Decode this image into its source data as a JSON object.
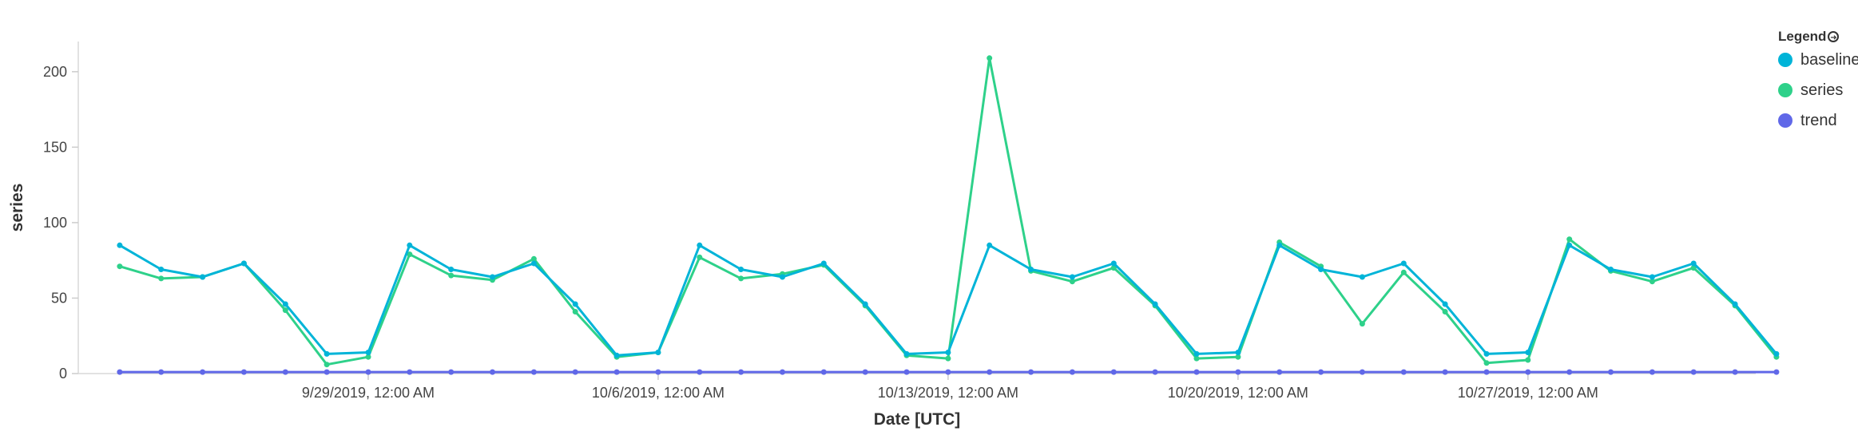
{
  "legend": {
    "title": "Legend",
    "items": [
      {
        "label": "baseline",
        "color": "#00b4d8"
      },
      {
        "label": "series",
        "color": "#2ed18a"
      },
      {
        "label": "trend",
        "color": "#6068e8"
      }
    ]
  },
  "chart_data": {
    "type": "line",
    "xlabel": "Date [UTC]",
    "ylabel": "series",
    "ylim": [
      0,
      220
    ],
    "xlim": [
      "2019-09-22",
      "2019-11-01 12:00"
    ],
    "yticks": [
      0,
      50,
      100,
      150,
      200
    ],
    "xticks": [
      {
        "date": "2019-09-29",
        "label": "9/29/2019, 12:00 AM"
      },
      {
        "date": "2019-10-06",
        "label": "10/6/2019, 12:00 AM"
      },
      {
        "date": "2019-10-13",
        "label": "10/13/2019, 12:00 AM"
      },
      {
        "date": "2019-10-20",
        "label": "10/20/2019, 12:00 AM"
      },
      {
        "date": "2019-10-27",
        "label": "10/27/2019, 12:00 AM"
      }
    ],
    "x": [
      "2019-09-23",
      "2019-09-24",
      "2019-09-25",
      "2019-09-26",
      "2019-09-27",
      "2019-09-28",
      "2019-09-29",
      "2019-09-30",
      "2019-10-01",
      "2019-10-02",
      "2019-10-03",
      "2019-10-04",
      "2019-10-05",
      "2019-10-06",
      "2019-10-07",
      "2019-10-08",
      "2019-10-09",
      "2019-10-10",
      "2019-10-11",
      "2019-10-12",
      "2019-10-13",
      "2019-10-14",
      "2019-10-15",
      "2019-10-16",
      "2019-10-17",
      "2019-10-18",
      "2019-10-19",
      "2019-10-20",
      "2019-10-21",
      "2019-10-22",
      "2019-10-23",
      "2019-10-24",
      "2019-10-25",
      "2019-10-26",
      "2019-10-27",
      "2019-10-28",
      "2019-10-29",
      "2019-10-30",
      "2019-10-31",
      "2019-11-01",
      "2019-11-02"
    ],
    "grid": false,
    "legend_position": "top-right",
    "series": [
      {
        "name": "baseline",
        "color": "#00b4d8",
        "values": [
          85,
          69,
          64,
          73,
          46,
          13,
          14,
          85,
          69,
          64,
          73,
          46,
          12,
          14,
          85,
          69,
          64,
          73,
          46,
          13,
          14,
          85,
          69,
          64,
          73,
          46,
          13,
          14,
          85,
          69,
          64,
          73,
          46,
          13,
          14,
          85,
          69,
          64,
          73,
          46,
          13
        ]
      },
      {
        "name": "series",
        "color": "#2ed18a",
        "values": [
          71,
          63,
          64,
          73,
          42,
          6,
          11,
          79,
          65,
          62,
          76,
          41,
          11,
          14,
          77,
          63,
          66,
          72,
          45,
          12,
          10,
          209,
          68,
          61,
          70,
          45,
          10,
          11,
          87,
          71,
          33,
          67,
          41,
          7,
          9,
          89,
          68,
          61,
          70,
          45,
          11
        ]
      },
      {
        "name": "trend",
        "color": "#6068e8",
        "values": [
          1,
          1,
          1,
          1,
          1,
          1,
          1,
          1,
          1,
          1,
          1,
          1,
          1,
          1,
          1,
          1,
          1,
          1,
          1,
          1,
          1,
          1,
          1,
          1,
          1,
          1,
          1,
          1,
          1,
          1,
          1,
          1,
          1,
          1,
          1,
          1,
          1,
          1,
          1,
          1,
          1
        ]
      }
    ]
  }
}
